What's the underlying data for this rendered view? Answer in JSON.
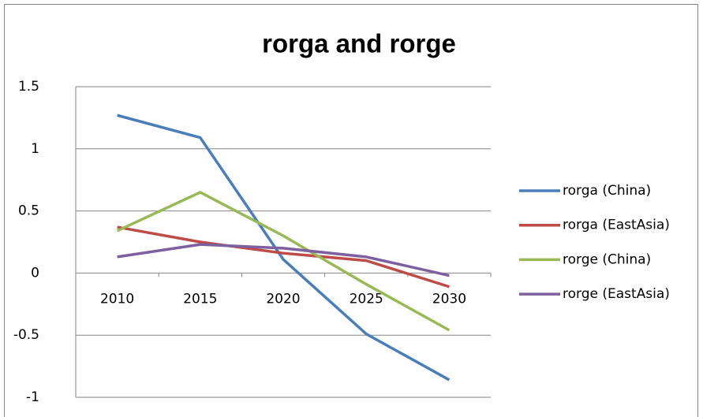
{
  "chart_data": {
    "type": "line",
    "title": "rorga and rorge",
    "categories": [
      "2010",
      "2015",
      "2020",
      "2025",
      "2030"
    ],
    "series": [
      {
        "name": "rorga (China)",
        "color": "#4a7ebb",
        "values": [
          1.27,
          1.09,
          0.11,
          -0.49,
          -0.86
        ]
      },
      {
        "name": "rorga (EastAsia)",
        "color": "#be4b48",
        "values": [
          0.37,
          0.25,
          0.16,
          0.1,
          -0.11
        ]
      },
      {
        "name": "rorge (China)",
        "color": "#98b954",
        "values": [
          0.34,
          0.65,
          0.3,
          -0.09,
          -0.46
        ]
      },
      {
        "name": "rorge (EastAsia)",
        "color": "#7d60a0",
        "values": [
          0.13,
          0.23,
          0.2,
          0.13,
          -0.02
        ]
      }
    ],
    "ylim": [
      -1,
      1.5
    ],
    "yticks": [
      -1,
      -0.5,
      0,
      0.5,
      1,
      1.5
    ],
    "grid": true,
    "legend": "right"
  }
}
